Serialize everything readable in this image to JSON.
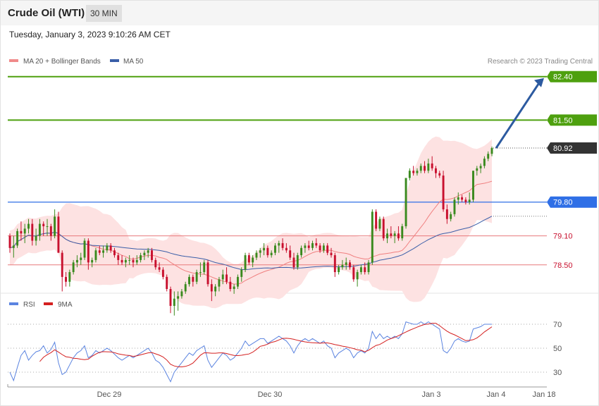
{
  "header": {
    "title": "Crude Oil (WTI)",
    "timeframe": "30 MIN",
    "datetime": "Tuesday, January 3, 2023 9:10:26 AM CET"
  },
  "legend": {
    "ma20_label": "MA 20 + Bollinger Bands",
    "ma50_label": "MA 50",
    "credit": "Research © 2023 Trading Central",
    "rsi_label": "RSI",
    "ma9_label": "9MA"
  },
  "colors": {
    "up": "#3a8a1e",
    "down": "#c8102e",
    "bollinger_fill": "#fde2e2",
    "ma20": "#f08080",
    "ma50": "#3a5ea8",
    "resistance": "#4ea00f",
    "pivot": "#2f6fe6",
    "support": "#e8797b",
    "last": "#333333",
    "rsi": "#5b84e0",
    "rsi_ma": "#d42020"
  },
  "chart_data": [
    {
      "type": "candlestick",
      "title": "Crude Oil (WTI)",
      "timeframe": "30 MIN",
      "ylim": [
        78.0,
        82.6
      ],
      "x_ticks": [
        "Dec 29",
        "Dec 30",
        "Jan 3",
        "Jan 4",
        "Jan 18"
      ],
      "levels": [
        {
          "name": "resistance-2",
          "value": 82.4,
          "label": "82.40",
          "style": "resistance"
        },
        {
          "name": "resistance-1",
          "value": 81.5,
          "label": "81.50",
          "style": "resistance"
        },
        {
          "name": "last-price",
          "value": 80.92,
          "label": "80.92",
          "style": "last"
        },
        {
          "name": "pivot",
          "value": 79.8,
          "label": "79.80",
          "style": "pivot"
        },
        {
          "name": "support-1",
          "value": 79.1,
          "label": "79.10",
          "style": "support"
        },
        {
          "name": "support-2",
          "value": 78.5,
          "label": "78.50",
          "style": "support"
        }
      ],
      "target_arrow": {
        "from": 80.92,
        "to": 82.4
      },
      "ohlc": [
        [
          79.1,
          79.15,
          78.75,
          78.85
        ],
        [
          78.85,
          79.1,
          78.65,
          78.9
        ],
        [
          78.9,
          79.25,
          78.85,
          79.2
        ],
        [
          79.2,
          79.4,
          79.0,
          79.15
        ],
        [
          79.15,
          79.35,
          78.95,
          79.25
        ],
        [
          79.25,
          79.45,
          79.15,
          79.35
        ],
        [
          79.35,
          79.45,
          78.9,
          79.0
        ],
        [
          79.0,
          79.25,
          78.9,
          79.1
        ],
        [
          79.1,
          79.45,
          79.0,
          79.35
        ],
        [
          79.35,
          79.4,
          79.1,
          79.3
        ],
        [
          79.3,
          79.45,
          79.1,
          79.3
        ],
        [
          79.3,
          79.35,
          79.0,
          79.1
        ],
        [
          79.1,
          79.65,
          79.05,
          79.5
        ],
        [
          79.5,
          79.6,
          78.75,
          78.75
        ],
        [
          78.75,
          78.8,
          77.95,
          78.25
        ],
        [
          78.25,
          78.35,
          78.05,
          78.15
        ],
        [
          78.15,
          78.4,
          78.05,
          78.35
        ],
        [
          78.35,
          78.6,
          78.3,
          78.55
        ],
        [
          78.55,
          78.7,
          78.45,
          78.6
        ],
        [
          78.6,
          78.75,
          78.5,
          78.65
        ],
        [
          78.65,
          79.05,
          78.6,
          79.0
        ],
        [
          79.0,
          79.05,
          78.4,
          78.55
        ],
        [
          78.55,
          78.65,
          78.45,
          78.6
        ],
        [
          78.6,
          78.85,
          78.55,
          78.8
        ],
        [
          78.8,
          78.9,
          78.7,
          78.75
        ],
        [
          78.75,
          78.9,
          78.65,
          78.8
        ],
        [
          78.8,
          78.95,
          78.75,
          78.9
        ],
        [
          78.9,
          78.95,
          78.75,
          78.8
        ],
        [
          78.8,
          78.85,
          78.65,
          78.7
        ],
        [
          78.7,
          78.75,
          78.5,
          78.6
        ],
        [
          78.6,
          78.7,
          78.5,
          78.55
        ],
        [
          78.55,
          78.65,
          78.45,
          78.6
        ],
        [
          78.6,
          78.7,
          78.5,
          78.6
        ],
        [
          78.6,
          78.65,
          78.45,
          78.55
        ],
        [
          78.55,
          78.7,
          78.5,
          78.6
        ],
        [
          78.6,
          78.75,
          78.55,
          78.7
        ],
        [
          78.7,
          78.8,
          78.6,
          78.75
        ],
        [
          78.75,
          78.85,
          78.65,
          78.8
        ],
        [
          78.8,
          78.85,
          78.55,
          78.6
        ],
        [
          78.6,
          78.65,
          78.4,
          78.45
        ],
        [
          78.45,
          78.55,
          78.35,
          78.4
        ],
        [
          78.4,
          78.45,
          78.2,
          78.25
        ],
        [
          78.25,
          78.3,
          77.95,
          78.0
        ],
        [
          78.0,
          78.05,
          77.5,
          77.65
        ],
        [
          77.65,
          77.95,
          77.45,
          77.8
        ],
        [
          77.8,
          77.95,
          77.55,
          77.85
        ],
        [
          77.85,
          78.0,
          77.8,
          77.95
        ],
        [
          77.95,
          78.15,
          77.9,
          78.1
        ],
        [
          78.1,
          78.3,
          78.05,
          78.25
        ],
        [
          78.25,
          78.3,
          78.05,
          78.15
        ],
        [
          78.15,
          78.4,
          78.1,
          78.35
        ],
        [
          78.35,
          78.55,
          78.25,
          78.35
        ],
        [
          78.35,
          78.6,
          78.3,
          78.55
        ],
        [
          78.55,
          78.6,
          78.05,
          78.1
        ],
        [
          78.1,
          78.2,
          77.75,
          77.95
        ],
        [
          77.95,
          78.1,
          77.85,
          78.05
        ],
        [
          78.05,
          78.25,
          77.95,
          78.2
        ],
        [
          78.2,
          78.4,
          78.1,
          78.3
        ],
        [
          78.3,
          78.45,
          78.1,
          78.15
        ],
        [
          78.15,
          78.25,
          77.95,
          78.0
        ],
        [
          78.0,
          78.1,
          77.9,
          78.05
        ],
        [
          78.05,
          78.3,
          78.0,
          78.25
        ],
        [
          78.25,
          78.45,
          78.15,
          78.4
        ],
        [
          78.4,
          78.75,
          78.35,
          78.7
        ],
        [
          78.7,
          78.75,
          78.5,
          78.55
        ],
        [
          78.55,
          78.7,
          78.45,
          78.65
        ],
        [
          78.65,
          78.8,
          78.6,
          78.75
        ],
        [
          78.75,
          78.85,
          78.65,
          78.8
        ],
        [
          78.8,
          78.95,
          78.7,
          78.85
        ],
        [
          78.85,
          78.9,
          78.65,
          78.7
        ],
        [
          78.7,
          78.8,
          78.65,
          78.75
        ],
        [
          78.75,
          78.95,
          78.7,
          78.9
        ],
        [
          78.9,
          79.0,
          78.75,
          78.95
        ],
        [
          78.95,
          79.05,
          78.8,
          78.85
        ],
        [
          78.85,
          78.95,
          78.75,
          78.8
        ],
        [
          78.8,
          78.9,
          78.6,
          78.65
        ],
        [
          78.65,
          78.75,
          78.4,
          78.45
        ],
        [
          78.45,
          78.75,
          78.4,
          78.7
        ],
        [
          78.7,
          78.9,
          78.65,
          78.85
        ],
        [
          78.85,
          78.95,
          78.75,
          78.9
        ],
        [
          78.9,
          79.0,
          78.8,
          78.85
        ],
        [
          78.85,
          79.0,
          78.8,
          78.95
        ],
        [
          78.95,
          79.05,
          78.85,
          78.9
        ],
        [
          78.9,
          78.95,
          78.75,
          78.8
        ],
        [
          78.8,
          78.95,
          78.75,
          78.9
        ],
        [
          78.9,
          78.95,
          78.7,
          78.75
        ],
        [
          78.75,
          78.85,
          78.65,
          78.7
        ],
        [
          78.7,
          78.75,
          78.25,
          78.35
        ],
        [
          78.35,
          78.5,
          78.3,
          78.45
        ],
        [
          78.45,
          78.6,
          78.4,
          78.5
        ],
        [
          78.5,
          78.65,
          78.4,
          78.55
        ],
        [
          78.55,
          78.6,
          78.4,
          78.45
        ],
        [
          78.45,
          78.5,
          78.15,
          78.2
        ],
        [
          78.2,
          78.4,
          78.05,
          78.35
        ],
        [
          78.35,
          78.5,
          78.3,
          78.45
        ],
        [
          78.45,
          78.55,
          78.3,
          78.35
        ],
        [
          78.35,
          78.6,
          78.3,
          78.55
        ],
        [
          78.55,
          79.65,
          78.5,
          79.6
        ],
        [
          79.6,
          79.65,
          79.2,
          79.25
        ],
        [
          79.25,
          79.5,
          79.2,
          79.45
        ],
        [
          79.45,
          79.5,
          79.0,
          79.05
        ],
        [
          79.05,
          79.25,
          78.95,
          79.15
        ],
        [
          79.15,
          79.3,
          79.05,
          79.1
        ],
        [
          79.1,
          79.2,
          78.95,
          79.15
        ],
        [
          79.15,
          79.3,
          79.0,
          79.05
        ],
        [
          79.05,
          79.35,
          79.0,
          79.3
        ],
        [
          79.3,
          80.3,
          79.25,
          80.3
        ],
        [
          80.3,
          80.5,
          80.25,
          80.45
        ],
        [
          80.45,
          80.55,
          80.35,
          80.4
        ],
        [
          80.4,
          80.5,
          80.35,
          80.45
        ],
        [
          80.45,
          80.6,
          80.4,
          80.55
        ],
        [
          80.55,
          80.65,
          80.4,
          80.45
        ],
        [
          80.45,
          80.7,
          80.4,
          80.6
        ],
        [
          80.6,
          80.75,
          80.45,
          80.5
        ],
        [
          80.5,
          80.55,
          80.3,
          80.4
        ],
        [
          80.4,
          80.45,
          80.3,
          80.35
        ],
        [
          80.35,
          80.45,
          79.6,
          79.65
        ],
        [
          79.65,
          79.75,
          79.35,
          79.45
        ],
        [
          79.45,
          79.6,
          79.4,
          79.55
        ],
        [
          79.55,
          79.9,
          79.5,
          79.85
        ],
        [
          79.85,
          80.0,
          79.75,
          79.9
        ],
        [
          79.9,
          79.95,
          79.8,
          79.85
        ],
        [
          79.85,
          79.9,
          79.75,
          79.8
        ],
        [
          79.8,
          80.0,
          79.75,
          79.85
        ],
        [
          79.85,
          80.45,
          79.8,
          80.45
        ],
        [
          80.45,
          80.55,
          80.35,
          80.5
        ],
        [
          80.5,
          80.6,
          80.4,
          80.55
        ],
        [
          80.55,
          80.75,
          80.5,
          80.7
        ],
        [
          80.7,
          80.85,
          80.65,
          80.8
        ],
        [
          80.8,
          80.95,
          80.75,
          80.92
        ]
      ]
    },
    {
      "type": "line",
      "title": "RSI",
      "ylim": [
        20,
        80
      ],
      "gridlines": [
        70,
        50,
        30
      ],
      "series": [
        {
          "name": "RSI",
          "values": [
            30,
            23,
            34,
            44,
            48,
            40,
            44,
            47,
            48,
            52,
            46,
            49,
            55,
            38,
            28,
            30,
            36,
            42,
            46,
            48,
            52,
            42,
            44,
            48,
            46,
            48,
            50,
            48,
            45,
            42,
            40,
            42,
            44,
            42,
            44,
            46,
            48,
            50,
            46,
            40,
            38,
            34,
            28,
            22,
            30,
            34,
            38,
            42,
            46,
            44,
            48,
            50,
            52,
            40,
            34,
            38,
            42,
            46,
            44,
            40,
            42,
            46,
            50,
            56,
            52,
            54,
            56,
            58,
            58,
            54,
            56,
            58,
            60,
            58,
            56,
            52,
            46,
            52,
            56,
            58,
            56,
            58,
            56,
            54,
            56,
            52,
            50,
            42,
            46,
            48,
            50,
            48,
            42,
            46,
            48,
            46,
            50,
            64,
            58,
            62,
            58,
            60,
            58,
            60,
            58,
            62,
            72,
            71,
            70,
            70,
            72,
            70,
            72,
            70,
            68,
            66,
            48,
            46,
            50,
            56,
            58,
            56,
            55,
            56,
            66,
            67,
            68,
            70,
            70,
            70
          ]
        },
        {
          "name": "9MA",
          "values": [
            null,
            null,
            null,
            null,
            null,
            null,
            null,
            null,
            38.9,
            42.4,
            44.6,
            46.3,
            48.7,
            46.8,
            44.7,
            42.9,
            42.4,
            41.6,
            41.4,
            40.8,
            40.4,
            40.9,
            43.3,
            45.1,
            46.6,
            47.1,
            47.0,
            46.9,
            46.3,
            45.3,
            44.7,
            44.2,
            43.9,
            43.2,
            43.7,
            44.5,
            45.3,
            46.1,
            46.4,
            45.3,
            44.2,
            42.7,
            40.1,
            36.6,
            35.2,
            34.5,
            34.4,
            34.8,
            35.8,
            37.6,
            40.8,
            44.2,
            46.2,
            46.1,
            45.8,
            45.8,
            46.1,
            46.1,
            45.6,
            44.7,
            44.0,
            43.8,
            44.1,
            44.7,
            45.2,
            46.7,
            49.0,
            51.6,
            52.3,
            53.4,
            54.9,
            55.6,
            56.9,
            58.2,
            58.3,
            58.0,
            57.4,
            56.6,
            55.9,
            55.3,
            54.8,
            54.6,
            54.4,
            54.2,
            54.4,
            54.4,
            53.8,
            53.0,
            52.4,
            51.7,
            51.2,
            50.4,
            49.7,
            48.7,
            48.3,
            47.0,
            48.3,
            50.4,
            52.3,
            53.1,
            54.9,
            56.8,
            58.0,
            59.0,
            60.4,
            62.0,
            63.5,
            65.0,
            66.3,
            67.6,
            68.8,
            69.8,
            70.2,
            70.8,
            70.8,
            68.8,
            66.4,
            64.2,
            62.4,
            61.2,
            59.6,
            58.0,
            56.3,
            56.5,
            57.1,
            58.6,
            60.9,
            63.6,
            65.7,
            67.9
          ]
        }
      ]
    }
  ]
}
